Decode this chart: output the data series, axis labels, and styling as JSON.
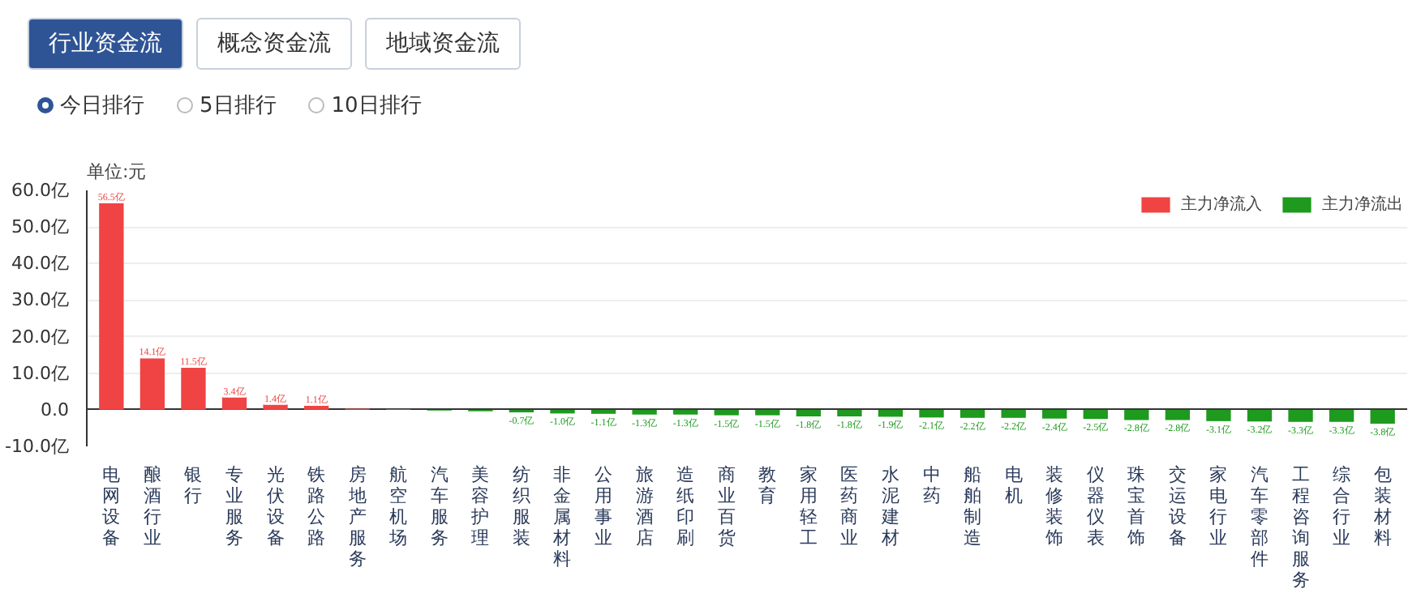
{
  "chart_data": {
    "type": "bar",
    "stacked": true,
    "ylabel": "单位:元",
    "annotations": [
      "行业资金流",
      "概念资金流",
      "地域资金流",
      "今日排行",
      "5日排行",
      "10日排行"
    ],
    "categories": [
      "电网设备",
      "酿酒行业",
      "银行",
      "专业服务",
      "光伏设备",
      "铁路公路",
      "房地产服务",
      "航空机场",
      "汽车服务",
      "美容护理",
      "纺织服装",
      "非金属材料",
      "公用事业",
      "旅游酒店",
      "造纸印刷",
      "商业百货",
      "教育",
      "家用轻工",
      "医药商业",
      "水泥建材",
      "中药",
      "船舶制造",
      "电机",
      "装修装饰",
      "仪器仪表",
      "珠宝首饰",
      "交运设备",
      "家电行业",
      "汽车零部件",
      "工程咨询服务",
      "综合行业",
      "包装材料"
    ],
    "series": [
      {
        "name": "主力净流入",
        "color": "#f04343",
        "values": [
          56.5,
          14.1,
          11.5,
          3.4,
          1.4,
          1.1,
          0.3,
          0.2,
          null,
          null,
          null,
          null,
          null,
          null,
          null,
          null,
          null,
          null,
          null,
          null,
          null,
          null,
          null,
          null,
          null,
          null,
          null,
          null,
          null,
          null,
          null,
          null
        ],
        "value_labels": [
          "56.5亿",
          "14.1亿",
          "11.5亿",
          "3.4亿",
          "1.4亿",
          "1.1亿",
          null,
          null,
          null,
          null,
          null,
          null,
          null,
          null,
          null,
          null,
          null,
          null,
          null,
          null,
          null,
          null,
          null,
          null,
          null,
          null,
          null,
          null,
          null,
          null,
          null,
          null
        ]
      },
      {
        "name": "主力净流出",
        "color": "#1e9a1e",
        "values": [
          null,
          null,
          null,
          null,
          null,
          null,
          null,
          null,
          -0.2,
          -0.4,
          -0.7,
          -1.0,
          -1.1,
          -1.3,
          -1.3,
          -1.5,
          -1.5,
          -1.8,
          -1.8,
          -1.9,
          -2.1,
          -2.2,
          -2.2,
          -2.4,
          -2.5,
          -2.8,
          -2.8,
          -3.1,
          -3.2,
          -3.3,
          -3.3,
          -3.8
        ],
        "value_labels": [
          null,
          null,
          null,
          null,
          null,
          null,
          null,
          null,
          null,
          null,
          "-0.7亿",
          "-1.0亿",
          "-1.1亿",
          "-1.3亿",
          "-1.3亿",
          "-1.5亿",
          "-1.5亿",
          "-1.8亿",
          "-1.8亿",
          "-1.9亿",
          "-2.1亿",
          "-2.2亿",
          "-2.2亿",
          "-2.4亿",
          "-2.5亿",
          "-2.8亿",
          "-2.8亿",
          "-3.1亿",
          "-3.2亿",
          "-3.3亿",
          "-3.3亿",
          "-3.8亿"
        ]
      }
    ],
    "ylim": [
      -10,
      60
    ],
    "yticks": [
      {
        "value": -10,
        "label": "-10.0亿"
      },
      {
        "value": 0,
        "label": "0.0"
      },
      {
        "value": 10,
        "label": "10.0亿"
      },
      {
        "value": 20,
        "label": "20.0亿"
      },
      {
        "value": 30,
        "label": "30.0亿"
      },
      {
        "value": 40,
        "label": "40.0亿"
      },
      {
        "value": 50,
        "label": "50.0亿"
      },
      {
        "value": 60,
        "label": "60.0亿"
      }
    ],
    "grid": "y",
    "legend": "top right"
  }
}
